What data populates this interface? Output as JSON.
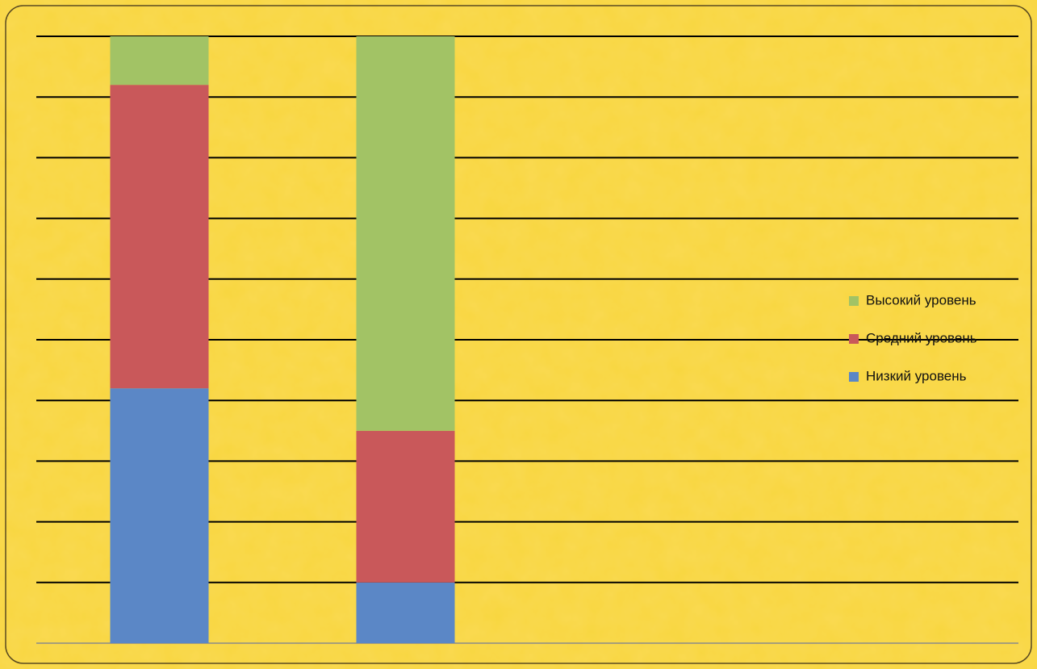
{
  "chart_data": {
    "type": "stacked_bar",
    "categories": [
      null,
      null
    ],
    "series": [
      {
        "name": "Низкий уровень",
        "color": "#5b87c6",
        "values": [
          42,
          10
        ]
      },
      {
        "name": "Средний уровень",
        "color": "#c9585a",
        "values": [
          50,
          25
        ]
      },
      {
        "name": "Высокий уровень",
        "color": "#a2c365",
        "values": [
          8,
          65
        ]
      }
    ],
    "ylim": [
      0,
      100
    ],
    "yticks": [
      0,
      10,
      20,
      30,
      40,
      50,
      60,
      70,
      80,
      90,
      100
    ],
    "grid": true,
    "show_tick_labels": false,
    "legend": "right"
  }
}
